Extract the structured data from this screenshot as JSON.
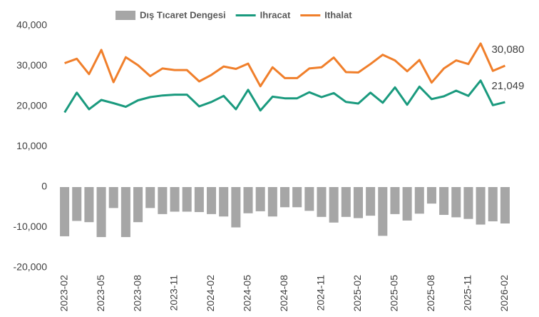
{
  "chart_data": {
    "type": "combo",
    "categories": [
      "2023-02",
      null,
      null,
      "2023-05",
      null,
      null,
      "2023-08",
      null,
      null,
      "2023-11",
      null,
      null,
      "2024-02",
      null,
      null,
      "2024-05",
      null,
      null,
      "2024-08",
      null,
      null,
      "2024-11",
      null,
      null,
      "2025-02",
      null,
      null,
      "2025-05",
      null,
      null,
      "2025-08",
      null,
      null,
      "2025-11",
      null,
      null,
      "2026-02"
    ],
    "series": [
      {
        "name": "Dış Tıcaret Dengesi",
        "type": "bar",
        "color": "#a6a6a6",
        "values": [
          -12200,
          -8400,
          -8700,
          -12400,
          -5200,
          -12400,
          -8700,
          -5200,
          -6700,
          -6100,
          -6100,
          -6200,
          -6700,
          -7300,
          -10000,
          -6500,
          -6000,
          -7300,
          -5000,
          -5000,
          -5900,
          -7400,
          -8800,
          -7400,
          -7700,
          -7100,
          -12100,
          -6700,
          -8300,
          -6600,
          -4100,
          -6900,
          -7500,
          -7900,
          -9300,
          -8500,
          -9030
        ]
      },
      {
        "name": "Ihracat",
        "type": "line",
        "color": "#1a9a7e",
        "values": [
          18500,
          23400,
          19300,
          21600,
          20800,
          19900,
          21500,
          22300,
          22700,
          22900,
          22900,
          20000,
          21100,
          22600,
          19300,
          24100,
          19000,
          22400,
          22000,
          22000,
          23500,
          22300,
          23300,
          21100,
          20700,
          23400,
          20900,
          24700,
          20400,
          24900,
          21800,
          22500,
          23900,
          22600,
          26400,
          20300,
          21049
        ],
        "value_labels": [
          null,
          null,
          null,
          null,
          null,
          null,
          null,
          null,
          null,
          null,
          null,
          null,
          null,
          null,
          null,
          null,
          null,
          null,
          null,
          null,
          null,
          null,
          null,
          null,
          null,
          null,
          null,
          null,
          null,
          null,
          null,
          null,
          null,
          null,
          null,
          null,
          "21,049"
        ]
      },
      {
        "name": "Ithalat",
        "type": "line",
        "color": "#f07f2b",
        "values": [
          30700,
          31800,
          28000,
          34000,
          26000,
          32200,
          30200,
          27500,
          29400,
          29000,
          29000,
          26200,
          27800,
          29900,
          29300,
          30600,
          25000,
          29700,
          27000,
          27000,
          29400,
          29700,
          32100,
          28500,
          28400,
          30500,
          32800,
          31400,
          28700,
          31500,
          25900,
          29400,
          31400,
          30500,
          35600,
          28800,
          30080
        ],
        "value_labels": [
          null,
          null,
          null,
          null,
          null,
          null,
          null,
          null,
          null,
          null,
          null,
          null,
          null,
          null,
          null,
          null,
          null,
          null,
          null,
          null,
          null,
          null,
          null,
          null,
          null,
          null,
          null,
          null,
          null,
          null,
          null,
          null,
          null,
          null,
          null,
          null,
          "30,080"
        ]
      }
    ],
    "ylim": [
      -20000,
      40000
    ],
    "yticks": [
      {
        "value": -20000,
        "label": "-20,000"
      },
      {
        "value": -10000,
        "label": "-10,000"
      },
      0,
      {
        "value": 10000,
        "label": "10,000"
      },
      {
        "value": 20000,
        "label": "20,000"
      },
      {
        "value": 30000,
        "label": "30,000"
      },
      {
        "value": 40000,
        "label": "40,000"
      }
    ],
    "grid": false,
    "legend": "top"
  }
}
